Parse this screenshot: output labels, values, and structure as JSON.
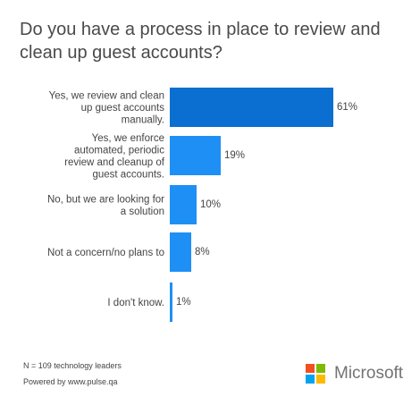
{
  "title": "Do you have a process in place to review and clean up guest accounts?",
  "chart_data": {
    "type": "bar",
    "orientation": "horizontal",
    "categories": [
      [
        "Yes, we review and clean",
        "up guest accounts",
        "manually."
      ],
      [
        "Yes, we enforce",
        "automated, periodic",
        "review and cleanup of",
        "guest accounts."
      ],
      [
        "No, but we are looking for",
        "a solution"
      ],
      [
        "Not a concern/no plans to"
      ],
      [
        "I don't know."
      ]
    ],
    "values": [
      61,
      19,
      10,
      8,
      1
    ],
    "value_labels": [
      "61%",
      "19%",
      "10%",
      "8%",
      "1%"
    ],
    "colors": [
      "#0a6fd0",
      "#1e90f5",
      "#1e90f5",
      "#1e90f5",
      "#1e90f5"
    ],
    "xlim": [
      0,
      61
    ]
  },
  "footer": {
    "sample": "N = 109 technology leaders",
    "powered_by": "Powered by www.pulse.qa"
  },
  "brand": {
    "name": "Microsoft",
    "logo_colors": [
      "#f25022",
      "#7fba00",
      "#00a4ef",
      "#ffb900"
    ]
  }
}
